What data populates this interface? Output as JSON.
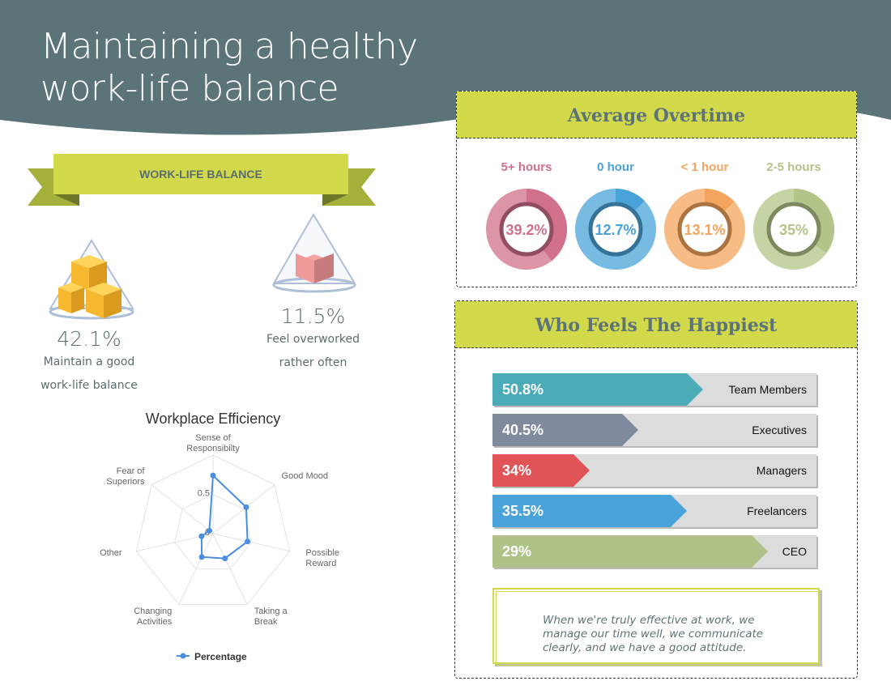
{
  "header": {
    "title_line1": "Maintaining a healthy",
    "title_line2": "work-life balance",
    "bg_color": "#5b7478"
  },
  "ribbon": {
    "label": "WORK-LIFE BALANCE"
  },
  "stats": [
    {
      "value": "42.1%",
      "line1": "Maintain a good",
      "line2": "work-life balance"
    },
    {
      "value": "11.5%",
      "line1": "Feel overworked",
      "line2": "rather often"
    }
  ],
  "overtime": {
    "title": "Average Overtime",
    "items": [
      {
        "label": "5+ hours",
        "value": "39.2%",
        "pct": 39.2,
        "color": "#d0708a"
      },
      {
        "label": "0 hour",
        "value": "12.7%",
        "pct": 12.7,
        "color": "#4aa3d8"
      },
      {
        "label": "< 1 hour",
        "value": "13.1%",
        "pct": 13.1,
        "color": "#f4a45c"
      },
      {
        "label": "2-5 hours",
        "value": "35%",
        "pct": 35,
        "color": "#b2c487"
      }
    ]
  },
  "happiest": {
    "title": "Who Feels The Happiest",
    "items": [
      {
        "value": "50.8%",
        "label": "Team Members",
        "color": "#4babb8"
      },
      {
        "value": "40.5%",
        "label": "Executives",
        "color": "#7f8b9c"
      },
      {
        "value": "34%",
        "label": "Managers",
        "color": "#e05458"
      },
      {
        "value": "35.5%",
        "label": "Freelancers",
        "color": "#4aa3d8"
      },
      {
        "value": "29%",
        "label": "CEO",
        "color": "#afc287"
      }
    ]
  },
  "quote": {
    "text": "When we're truly effective at work, we manage our time well, we communicate clearly, and we have a good attitude."
  },
  "chart_data": {
    "type": "radar",
    "title": "Workplace Efficiency",
    "categories": [
      "Sense of Responsibilty",
      "Good Mood",
      "Possible Reward",
      "Taking a Break",
      "Changing Activities",
      "Other",
      "Fear of Superiors"
    ],
    "category_lines": [
      [
        "Sense of",
        "Responsibilty"
      ],
      [
        "Good Mood"
      ],
      [
        "Possible",
        "Reward"
      ],
      [
        "Taking a",
        "Break"
      ],
      [
        "Changing",
        "Activities"
      ],
      [
        "Other"
      ],
      [
        "Fear of",
        "Superiors"
      ]
    ],
    "series": [
      {
        "name": "Percentage",
        "values": [
          0.74,
          0.54,
          0.45,
          0.35,
          0.33,
          0.15,
          0.06
        ],
        "color": "#4a8ee0"
      }
    ],
    "rlim": [
      0,
      1
    ],
    "tick_labels": [
      "0",
      "0.5"
    ],
    "legend": "bottom",
    "grid": true
  }
}
